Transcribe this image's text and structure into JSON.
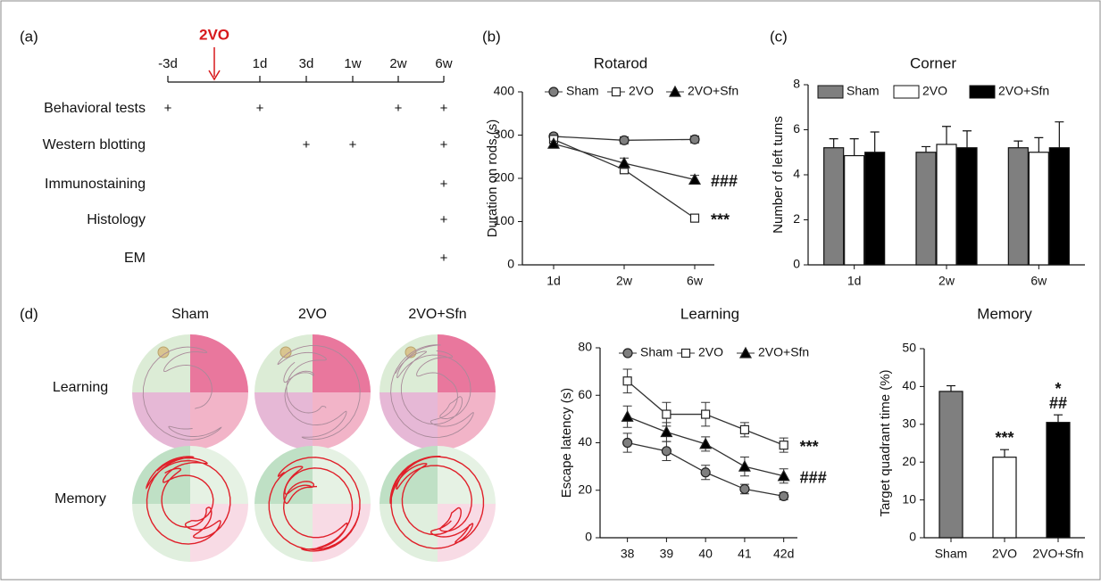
{
  "timeline": {
    "panel": "(a)",
    "event": "2VO",
    "times": [
      "-3d",
      "1d",
      "3d",
      "1w",
      "2w",
      "6w"
    ],
    "rows": [
      {
        "label": "Behavioral tests",
        "marks": [
          "+",
          "+",
          null,
          null,
          "+",
          "+"
        ]
      },
      {
        "label": "Western blotting",
        "marks": [
          null,
          null,
          "+",
          "+",
          null,
          "+"
        ]
      },
      {
        "label": "Immunostaining",
        "marks": [
          null,
          null,
          null,
          null,
          null,
          "+"
        ]
      },
      {
        "label": "Histology",
        "marks": [
          null,
          null,
          null,
          null,
          null,
          "+"
        ]
      },
      {
        "label": "EM",
        "marks": [
          null,
          null,
          null,
          null,
          null,
          "+"
        ]
      }
    ]
  },
  "maze": {
    "panel": "(d)",
    "columns": [
      "Sham",
      "2VO",
      "2VO+Sfn"
    ],
    "rows": [
      "Learning",
      "Memory"
    ]
  },
  "chart_data": [
    {
      "type": "line",
      "panel": "(b)",
      "title": "Rotarod",
      "ylabel": "Duration on rods (s)",
      "categories": [
        "1d",
        "2w",
        "6w"
      ],
      "ylim": [
        0,
        400
      ],
      "yticks": [
        0,
        100,
        200,
        300,
        400
      ],
      "series": [
        {
          "name": "Sham",
          "color": "#7f7f7f",
          "marker": "circle",
          "values": [
            297,
            288,
            290
          ],
          "errors": [
            6,
            8,
            8
          ]
        },
        {
          "name": "2VO",
          "color": "#ffffff",
          "marker": "square",
          "values": [
            290,
            220,
            108
          ],
          "errors": [
            6,
            8,
            6
          ]
        },
        {
          "name": "2VO+Sfn",
          "color": "#000000",
          "marker": "triangle",
          "values": [
            280,
            235,
            197
          ],
          "errors": [
            6,
            12,
            10
          ]
        }
      ],
      "annotations": [
        {
          "text": "###",
          "series": "2VO+Sfn"
        },
        {
          "text": "***",
          "series": "2VO"
        }
      ]
    },
    {
      "type": "bar",
      "panel": "(c)",
      "title": "Corner",
      "ylabel": "Number of left turns",
      "categories": [
        "1d",
        "2w",
        "6w"
      ],
      "ylim": [
        0,
        8
      ],
      "yticks": [
        0,
        2,
        4,
        6,
        8
      ],
      "series": [
        {
          "name": "Sham",
          "color": "#7f7f7f",
          "values": [
            5.2,
            5.0,
            5.2
          ],
          "errors": [
            0.4,
            0.25,
            0.3
          ]
        },
        {
          "name": "2VO",
          "color": "#ffffff",
          "values": [
            4.85,
            5.35,
            5.0
          ],
          "errors": [
            0.75,
            0.8,
            0.65
          ]
        },
        {
          "name": "2VO+Sfn",
          "color": "#000000",
          "values": [
            5.0,
            5.2,
            5.2
          ],
          "errors": [
            0.9,
            0.75,
            1.15
          ]
        }
      ]
    },
    {
      "type": "line",
      "title": "Learning",
      "ylabel": "Escape latency (s)",
      "x": [
        38,
        39,
        40,
        41,
        42
      ],
      "xlim": [
        37.3,
        42.35
      ],
      "xticks": [
        38,
        39,
        40,
        41,
        {
          "value": 42,
          "label": "42d"
        }
      ],
      "ylim": [
        0,
        80
      ],
      "yticks": [
        0,
        20,
        40,
        60,
        80
      ],
      "series": [
        {
          "name": "Sham",
          "color": "#7f7f7f",
          "marker": "circle",
          "values": [
            40,
            36.5,
            27.5,
            20.5,
            17.5
          ],
          "errors": [
            4,
            4,
            3,
            2,
            1.5
          ]
        },
        {
          "name": "2VO",
          "color": "#ffffff",
          "marker": "square",
          "values": [
            66,
            52,
            52,
            45.5,
            39
          ],
          "errors": [
            5,
            5,
            5,
            3,
            3
          ]
        },
        {
          "name": "2VO+Sfn",
          "color": "#000000",
          "marker": "triangle",
          "values": [
            51,
            44.5,
            39.5,
            30,
            26
          ],
          "errors": [
            4.5,
            4,
            3,
            4,
            3
          ]
        }
      ],
      "annotations": [
        {
          "text": "***",
          "series": "2VO"
        },
        {
          "text": "###",
          "series": "2VO+Sfn"
        }
      ]
    },
    {
      "type": "bar",
      "title": "Memory",
      "ylabel": "Target quadrant time (%)",
      "categories": [
        "Sham",
        "2VO",
        "2VO+Sfn"
      ],
      "ylim": [
        0,
        50
      ],
      "yticks": [
        0,
        10,
        20,
        30,
        40,
        50
      ],
      "values": [
        38.7,
        21.3,
        30.5
      ],
      "errors": [
        1.5,
        2,
        2
      ],
      "colors": [
        "#7f7f7f",
        "#ffffff",
        "#000000"
      ],
      "annotations": [
        {
          "text": "***",
          "category": "2VO"
        },
        {
          "text": "##",
          "category": "2VO+Sfn"
        },
        {
          "text": "*",
          "category": "2VO+Sfn"
        }
      ]
    }
  ]
}
